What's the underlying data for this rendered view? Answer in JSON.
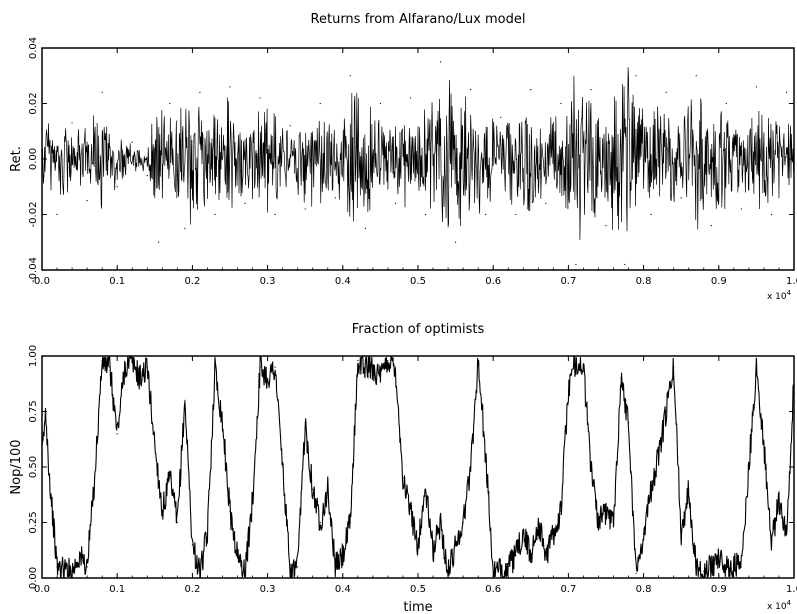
{
  "chart_data": [
    {
      "type": "line",
      "title": "Returns from Alfarano/Lux model",
      "xlabel": "",
      "ylabel": "Ret.",
      "x_multiplier_label": "x 10",
      "x_multiplier_exp": "4",
      "xlim": [
        0.0,
        1.0
      ],
      "ylim": [
        -0.04,
        0.04
      ],
      "x_ticks": [
        0.0,
        0.1,
        0.2,
        0.3,
        0.4,
        0.5,
        0.6,
        0.7,
        0.8,
        0.9,
        1.0
      ],
      "x_tick_labels": [
        "0.0",
        "0.1",
        "0.2",
        "0.3",
        "0.4",
        "0.5",
        "0.6",
        "0.7",
        "0.8",
        "0.9",
        "1.0"
      ],
      "y_ticks": [
        -0.04,
        -0.02,
        0.0,
        0.02,
        0.04
      ],
      "y_tick_labels": [
        "-0.04",
        "-0.02",
        "0.00",
        "0.02",
        "0.04"
      ],
      "grid": false,
      "line_color": "#000000",
      "series": [
        {
          "x": [
            0.0,
            0.02,
            0.04,
            0.06,
            0.08,
            0.1,
            0.12,
            0.14,
            0.155,
            0.17,
            0.19,
            0.21,
            0.23,
            0.25,
            0.27,
            0.29,
            0.31,
            0.33,
            0.35,
            0.37,
            0.39,
            0.41,
            0.43,
            0.45,
            0.47,
            0.49,
            0.51,
            0.53,
            0.55,
            0.57,
            0.59,
            0.61,
            0.63,
            0.65,
            0.67,
            0.69,
            0.71,
            0.73,
            0.75,
            0.775,
            0.79,
            0.81,
            0.83,
            0.85,
            0.87,
            0.89,
            0.91,
            0.93,
            0.95,
            0.97,
            0.99,
            1.0
          ],
          "values": [
            0.014,
            -0.02,
            0.013,
            -0.015,
            0.024,
            -0.01,
            0.006,
            -0.006,
            -0.03,
            0.02,
            -0.025,
            0.024,
            -0.02,
            0.026,
            -0.016,
            0.022,
            -0.02,
            0.012,
            -0.018,
            0.02,
            -0.014,
            0.03,
            -0.025,
            0.02,
            -0.016,
            0.022,
            -0.02,
            0.035,
            -0.03,
            0.025,
            -0.02,
            0.015,
            -0.02,
            0.025,
            -0.016,
            0.02,
            -0.038,
            0.025,
            -0.024,
            -0.038,
            0.03,
            -0.02,
            0.024,
            -0.014,
            0.03,
            -0.024,
            0.02,
            -0.018,
            0.026,
            -0.02,
            0.024,
            -0.016
          ]
        }
      ]
    },
    {
      "type": "line",
      "title": "Fraction of optimists",
      "xlabel": "time",
      "ylabel": "Nop/100",
      "x_multiplier_label": "x 10",
      "x_multiplier_exp": "4",
      "xlim": [
        0.0,
        1.0
      ],
      "ylim": [
        0.0,
        1.0
      ],
      "x_ticks": [
        0.0,
        0.1,
        0.2,
        0.3,
        0.4,
        0.5,
        0.6,
        0.7,
        0.8,
        0.9,
        1.0
      ],
      "x_tick_labels": [
        "0.0",
        "0.1",
        "0.2",
        "0.3",
        "0.4",
        "0.5",
        "0.6",
        "0.7",
        "0.8",
        "0.9",
        "1.0"
      ],
      "y_ticks": [
        0.0,
        0.25,
        0.5,
        0.75,
        1.0
      ],
      "y_tick_labels": [
        "0.00",
        "0.25",
        "0.50",
        "0.75",
        "1.00"
      ],
      "grid": false,
      "line_color": "#000000",
      "series": [
        {
          "x": [
            0.0,
            0.005,
            0.01,
            0.02,
            0.04,
            0.05,
            0.06,
            0.07,
            0.08,
            0.09,
            0.1,
            0.11,
            0.12,
            0.13,
            0.14,
            0.15,
            0.16,
            0.17,
            0.18,
            0.19,
            0.2,
            0.21,
            0.22,
            0.23,
            0.24,
            0.25,
            0.26,
            0.27,
            0.28,
            0.29,
            0.3,
            0.31,
            0.32,
            0.33,
            0.34,
            0.35,
            0.36,
            0.37,
            0.38,
            0.39,
            0.4,
            0.41,
            0.42,
            0.43,
            0.44,
            0.45,
            0.46,
            0.47,
            0.48,
            0.5,
            0.51,
            0.52,
            0.53,
            0.54,
            0.55,
            0.56,
            0.57,
            0.58,
            0.59,
            0.6,
            0.61,
            0.62,
            0.63,
            0.64,
            0.65,
            0.66,
            0.67,
            0.68,
            0.69,
            0.7,
            0.71,
            0.72,
            0.73,
            0.74,
            0.75,
            0.76,
            0.77,
            0.78,
            0.79,
            0.8,
            0.81,
            0.82,
            0.83,
            0.84,
            0.85,
            0.86,
            0.87,
            0.88,
            0.89,
            0.9,
            0.91,
            0.92,
            0.93,
            0.94,
            0.95,
            0.96,
            0.97,
            0.98,
            0.99,
            1.0
          ],
          "values": [
            0.55,
            0.75,
            0.45,
            0.05,
            0.03,
            0.1,
            0.05,
            0.45,
            0.98,
            0.95,
            0.65,
            0.95,
            0.98,
            0.9,
            0.95,
            0.6,
            0.3,
            0.45,
            0.25,
            0.8,
            0.15,
            0.02,
            0.2,
            0.95,
            0.7,
            0.3,
            0.1,
            0.02,
            0.35,
            0.95,
            0.9,
            0.95,
            0.5,
            0.02,
            0.05,
            0.7,
            0.4,
            0.25,
            0.4,
            0.05,
            0.1,
            0.25,
            0.98,
            0.95,
            0.95,
            0.9,
            0.98,
            0.95,
            0.45,
            0.15,
            0.4,
            0.12,
            0.25,
            0.02,
            0.15,
            0.25,
            0.5,
            0.98,
            0.55,
            0.02,
            0.03,
            0.05,
            0.1,
            0.2,
            0.1,
            0.25,
            0.1,
            0.2,
            0.3,
            0.85,
            0.98,
            0.95,
            0.5,
            0.25,
            0.3,
            0.25,
            0.9,
            0.7,
            0.02,
            0.2,
            0.4,
            0.55,
            0.75,
            0.95,
            0.2,
            0.4,
            0.05,
            0.03,
            0.05,
            0.1,
            0.04,
            0.06,
            0.05,
            0.5,
            0.95,
            0.6,
            0.15,
            0.35,
            0.2,
            0.9
          ]
        }
      ]
    }
  ]
}
